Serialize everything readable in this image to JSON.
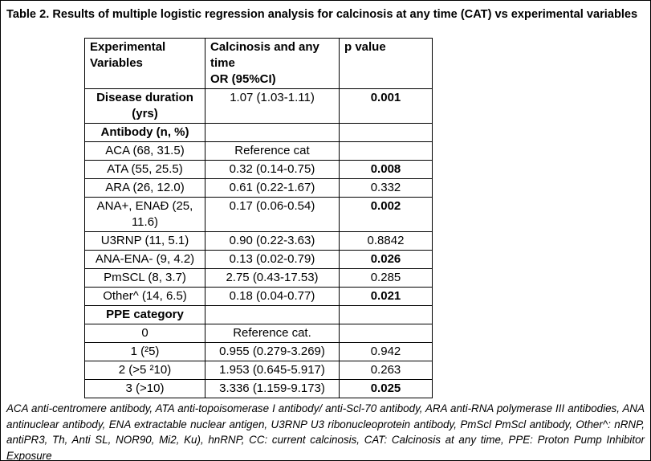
{
  "page": {
    "title": "Table 2. Results of multiple logistic regression analysis for calcinosis at any time (CAT) vs experimental variables"
  },
  "table": {
    "columns": [
      {
        "label": "Experimental\nVariables"
      },
      {
        "label": "Calcinosis and any time\nOR (95%CI)"
      },
      {
        "label": "p value"
      }
    ],
    "rows": [
      {
        "cells": [
          {
            "text": "Disease duration (yrs)",
            "bold": true
          },
          {
            "text": "1.07 (1.03-1.11)"
          },
          {
            "text": "0.001",
            "bold": true
          }
        ]
      },
      {
        "cells": [
          {
            "text": "Antibody (n, %)",
            "bold": true
          },
          {
            "text": ""
          },
          {
            "text": ""
          }
        ]
      },
      {
        "cells": [
          {
            "text": "ACA (68, 31.5)"
          },
          {
            "text": "Reference cat"
          },
          {
            "text": ""
          }
        ]
      },
      {
        "cells": [
          {
            "text": "ATA (55, 25.5)"
          },
          {
            "text": "0.32 (0.14-0.75)"
          },
          {
            "text": "0.008",
            "bold": true
          }
        ]
      },
      {
        "cells": [
          {
            "text": "ARA (26, 12.0)"
          },
          {
            "text": "0.61 (0.22-1.67)"
          },
          {
            "text": "0.332"
          }
        ]
      },
      {
        "cells": [
          {
            "text": "ANA+, ENAÐ (25, 11.6)"
          },
          {
            "text": "0.17 (0.06-0.54)"
          },
          {
            "text": "0.002",
            "bold": true
          }
        ]
      },
      {
        "cells": [
          {
            "text": "U3RNP (11, 5.1)"
          },
          {
            "text": "0.90 (0.22-3.63)"
          },
          {
            "text": "0.8842"
          }
        ]
      },
      {
        "cells": [
          {
            "text": "ANA-ENA- (9, 4.2)"
          },
          {
            "text": "0.13 (0.02-0.79)"
          },
          {
            "text": "0.026",
            "bold": true
          }
        ]
      },
      {
        "cells": [
          {
            "text": "PmSCL (8, 3.7)"
          },
          {
            "text": "2.75 (0.43-17.53)"
          },
          {
            "text": "0.285"
          }
        ]
      },
      {
        "cells": [
          {
            "text": "Other^ (14, 6.5)"
          },
          {
            "text": "0.18 (0.04-0.77)"
          },
          {
            "text": "0.021",
            "bold": true
          }
        ]
      },
      {
        "cells": [
          {
            "text": "PPE category",
            "bold": true
          },
          {
            "text": ""
          },
          {
            "text": ""
          }
        ]
      },
      {
        "cells": [
          {
            "text": "0"
          },
          {
            "text": "Reference cat."
          },
          {
            "text": ""
          }
        ]
      },
      {
        "cells": [
          {
            "text": "1 (²5)"
          },
          {
            "text": "0.955 (0.279-3.269)"
          },
          {
            "text": "0.942"
          }
        ]
      },
      {
        "cells": [
          {
            "text": "2 (>5 ²10)"
          },
          {
            "text": "1.953 (0.645-5.917)"
          },
          {
            "text": "0.263"
          }
        ]
      },
      {
        "cells": [
          {
            "text": "3 (>10)"
          },
          {
            "text": "3.336 (1.159-9.173)"
          },
          {
            "text": "0.025",
            "bold": true
          }
        ]
      }
    ]
  },
  "footnote": {
    "text": "ACA anti-centromere antibody, ATA anti-topoisomerase I antibody/ anti-Scl-70 antibody, ARA anti-RNA polymerase III antibodies, ANA antinuclear antibody, ENA extractable nuclear antigen, U3RNP U3 ribonucleoprotein antibody, PmScl PmScl antibody, Other^: nRNP, antiPR3, Th, Anti SL, NOR90, Mi2, Ku), hnRNP, CC: current calcinosis, CAT: Calcinosis at any time, PPE: Proton Pump Inhibitor Exposure"
  }
}
